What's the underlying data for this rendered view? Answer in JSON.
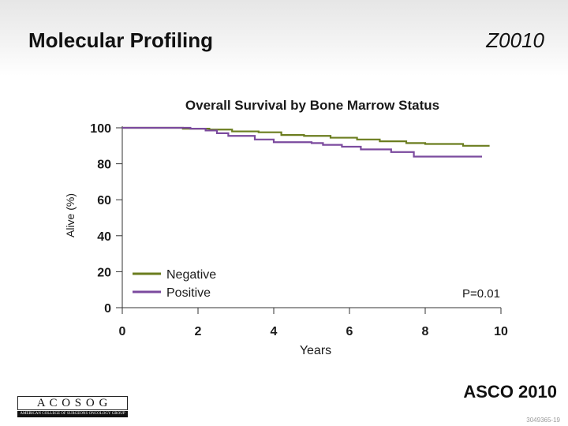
{
  "header": {
    "title": "Molecular Profiling",
    "study_code": "Z0010"
  },
  "footer": {
    "meeting": "ASCO 2010",
    "slide_id": "3049365-19",
    "logo_letters": "A C O S O G",
    "logo_subtitle": "AMERICAN COLLEGE OF SURGEONS ONCOLOGY GROUP"
  },
  "colors": {
    "negative": "#6b7d1f",
    "positive": "#7b4a9e",
    "axis": "#333333"
  },
  "chart_data": {
    "type": "line",
    "title": "Overall Survival by Bone Marrow Status",
    "xlabel": "Years",
    "ylabel": "Alive (%)",
    "xlim": [
      0,
      10
    ],
    "ylim": [
      0,
      100
    ],
    "xticks": [
      0,
      2,
      4,
      6,
      8,
      10
    ],
    "yticks": [
      0,
      20,
      40,
      60,
      80,
      100
    ],
    "grid": false,
    "legend_position": "lower-left",
    "annotation": "P=0.01",
    "series": [
      {
        "name": "Negative",
        "color": "#6b7d1f",
        "step": true,
        "points": [
          [
            0,
            100
          ],
          [
            1.6,
            99.5
          ],
          [
            2.3,
            99
          ],
          [
            2.9,
            98
          ],
          [
            3.6,
            97.5
          ],
          [
            4.2,
            96
          ],
          [
            4.8,
            95.5
          ],
          [
            5.5,
            94.5
          ],
          [
            6.2,
            93.5
          ],
          [
            6.8,
            92.5
          ],
          [
            7.5,
            91.5
          ],
          [
            8.0,
            91
          ],
          [
            9.0,
            90
          ],
          [
            9.7,
            90
          ]
        ]
      },
      {
        "name": "Positive",
        "color": "#7b4a9e",
        "step": true,
        "points": [
          [
            0,
            100
          ],
          [
            1.8,
            99.5
          ],
          [
            2.2,
            98.5
          ],
          [
            2.5,
            97
          ],
          [
            2.8,
            95.5
          ],
          [
            3.5,
            93.5
          ],
          [
            4.0,
            92
          ],
          [
            5.0,
            91.5
          ],
          [
            5.3,
            90.5
          ],
          [
            5.8,
            89.5
          ],
          [
            6.3,
            88
          ],
          [
            7.1,
            86.5
          ],
          [
            7.7,
            84
          ],
          [
            9.5,
            84
          ]
        ]
      }
    ]
  }
}
